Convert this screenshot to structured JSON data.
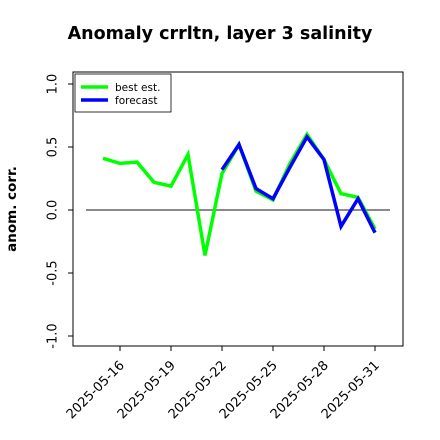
{
  "chart_data": {
    "type": "line",
    "title": "Anomaly crrltn, layer 3 salinity",
    "xlabel": "",
    "ylabel": "anom. corr.",
    "ylim": [
      -1.0,
      1.0
    ],
    "yticks": [
      "-1.0",
      "-0.5",
      "0.0",
      "0.5",
      "1.0"
    ],
    "xticks": [
      "2025-05-16",
      "2025-05-19",
      "2025-05-22",
      "2025-05-25",
      "2025-05-28",
      "2025-05-31"
    ],
    "highlight_tick": "2025-05-22",
    "highlight_color": "#228B22",
    "zero_line": true,
    "grid": false,
    "legend_position": "top-left",
    "series": [
      {
        "name": "best est.",
        "color": "#00ff00",
        "x": [
          "2025-05-15",
          "2025-05-16",
          "2025-05-17",
          "2025-05-18",
          "2025-05-19",
          "2025-05-20",
          "2025-05-21",
          "2025-05-22",
          "2025-05-23",
          "2025-05-24",
          "2025-05-25",
          "2025-05-26",
          "2025-05-27",
          "2025-05-28",
          "2025-05-29",
          "2025-05-30",
          "2025-05-31"
        ],
        "values": [
          0.41,
          0.37,
          0.38,
          0.22,
          0.19,
          0.44,
          -0.36,
          0.29,
          0.52,
          0.15,
          0.08,
          0.37,
          0.6,
          0.4,
          0.13,
          0.1,
          -0.15
        ]
      },
      {
        "name": "forecast",
        "color": "#0000ff",
        "x": [
          "2025-05-22",
          "2025-05-23",
          "2025-05-24",
          "2025-05-25",
          "2025-05-26",
          "2025-05-27",
          "2025-05-28",
          "2025-05-29",
          "2025-05-30",
          "2025-05-31"
        ],
        "values": [
          0.32,
          0.52,
          0.17,
          0.09,
          0.34,
          0.58,
          0.4,
          -0.13,
          0.09,
          -0.18
        ]
      }
    ]
  }
}
